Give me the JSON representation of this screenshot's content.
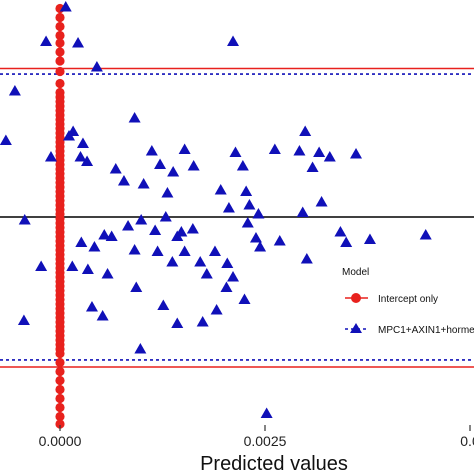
{
  "chart_data": {
    "type": "scatter",
    "xlabel": "Predicted values",
    "x_ticks": [
      {
        "value": 0,
        "label": "0.0000"
      },
      {
        "value": 0.0025,
        "label": "0.0025"
      },
      {
        "value": 0.005,
        "label": "0.0"
      }
    ],
    "legend": {
      "title": "Model",
      "placement": "right",
      "entries": [
        "Intercept only",
        "MPC1+AXIN1+horme"
      ]
    },
    "colors": {
      "intercept": "#e8211d",
      "full_model": "#1010b8",
      "zero_line": "#000000"
    },
    "reference_lines": [
      {
        "series": "Intercept only",
        "style": "solid",
        "y": 0.99
      },
      {
        "series": "MPC1+AXIN1+horme",
        "style": "dashed",
        "y": 0.953
      },
      {
        "series": "zero",
        "style": "solid",
        "y": 0
      },
      {
        "series": "MPC1+AXIN1+horme",
        "style": "dashed",
        "y": -0.953
      },
      {
        "series": "Intercept only",
        "style": "solid",
        "y": -1.0
      }
    ],
    "series": [
      {
        "name": "Intercept only",
        "marker": "circle",
        "points": [
          [
            0,
            1.39
          ],
          [
            0,
            1.33
          ],
          [
            0,
            1.27
          ],
          [
            0,
            1.21
          ],
          [
            0,
            1.16
          ],
          [
            0,
            1.1
          ],
          [
            0,
            1.04
          ],
          [
            0,
            0.97
          ],
          [
            0,
            0.89
          ],
          [
            0,
            0.83
          ],
          [
            0,
            0.8
          ],
          [
            0,
            0.77
          ],
          [
            0,
            0.74
          ],
          [
            0,
            0.71
          ],
          [
            0,
            0.68
          ],
          [
            0,
            0.65
          ],
          [
            0,
            0.62
          ],
          [
            0,
            0.59
          ],
          [
            0,
            0.56
          ],
          [
            0,
            0.53
          ],
          [
            0,
            0.5
          ],
          [
            0,
            0.47
          ],
          [
            0,
            0.44
          ],
          [
            0,
            0.41
          ],
          [
            0,
            0.38
          ],
          [
            0,
            0.35
          ],
          [
            0,
            0.32
          ],
          [
            0,
            0.29
          ],
          [
            0,
            0.26
          ],
          [
            0,
            0.23
          ],
          [
            0,
            0.2
          ],
          [
            0,
            0.17
          ],
          [
            0,
            0.14
          ],
          [
            0,
            0.11
          ],
          [
            0,
            0.08
          ],
          [
            0,
            0.05
          ],
          [
            0,
            0.02
          ],
          [
            0,
            -0.01
          ],
          [
            0,
            -0.04
          ],
          [
            0,
            -0.07
          ],
          [
            0,
            -0.1
          ],
          [
            0,
            -0.13
          ],
          [
            0,
            -0.16
          ],
          [
            0,
            -0.19
          ],
          [
            0,
            -0.22
          ],
          [
            0,
            -0.25
          ],
          [
            0,
            -0.28
          ],
          [
            0,
            -0.31
          ],
          [
            0,
            -0.34
          ],
          [
            0,
            -0.37
          ],
          [
            0,
            -0.4
          ],
          [
            0,
            -0.43
          ],
          [
            0,
            -0.46
          ],
          [
            0,
            -0.49
          ],
          [
            0,
            -0.52
          ],
          [
            0,
            -0.55
          ],
          [
            0,
            -0.58
          ],
          [
            0,
            -0.61
          ],
          [
            0,
            -0.64
          ],
          [
            0,
            -0.67
          ],
          [
            0,
            -0.7
          ],
          [
            0,
            -0.73
          ],
          [
            0,
            -0.76
          ],
          [
            0,
            -0.79
          ],
          [
            0,
            -0.82
          ],
          [
            0,
            -0.85
          ],
          [
            0,
            -0.88
          ],
          [
            0,
            -0.91
          ],
          [
            0,
            -0.97
          ],
          [
            0,
            -1.03
          ],
          [
            0,
            -1.09
          ],
          [
            0,
            -1.15
          ],
          [
            0,
            -1.21
          ],
          [
            0,
            -1.27
          ],
          [
            0,
            -1.33
          ],
          [
            0,
            -1.38
          ]
        ]
      },
      {
        "name": "MPC1+AXIN1+horme",
        "marker": "triangle",
        "points": [
          [
            7e-05,
            1.4
          ],
          [
            -0.00017,
            1.17
          ],
          [
            0.00022,
            1.16
          ],
          [
            0.00211,
            1.17
          ],
          [
            0.00045,
            1.0
          ],
          [
            -0.00055,
            0.84
          ],
          [
            0.00091,
            0.66
          ],
          [
            0.00011,
            0.54
          ],
          [
            0.00016,
            0.57
          ],
          [
            0.00028,
            0.49
          ],
          [
            0.00025,
            0.4
          ],
          [
            0.00112,
            0.44
          ],
          [
            0.00152,
            0.45
          ],
          [
            0.00214,
            0.43
          ],
          [
            0.00223,
            0.34
          ],
          [
            0.00262,
            0.45
          ],
          [
            0.00292,
            0.44
          ],
          [
            0.00299,
            0.57
          ],
          [
            0.00308,
            0.33
          ],
          [
            0.00316,
            0.43
          ],
          [
            0.00361,
            0.42
          ],
          [
            0.00329,
            0.4
          ],
          [
            -0.00011,
            0.4
          ],
          [
            0.00033,
            0.37
          ],
          [
            0.00068,
            0.32
          ],
          [
            0.00078,
            0.24
          ],
          [
            0.00102,
            0.22
          ],
          [
            0.00122,
            0.35
          ],
          [
            0.00131,
            0.16
          ],
          [
            0.00138,
            0.3
          ],
          [
            0.00163,
            0.34
          ],
          [
            0.00196,
            0.18
          ],
          [
            0.00206,
            0.06
          ],
          [
            0.00227,
            0.17
          ],
          [
            0.00231,
            0.08
          ],
          [
            0.00242,
            0.02
          ],
          [
            0.00229,
            -0.04
          ],
          [
            0.00296,
            0.03
          ],
          [
            0.00319,
            0.1
          ],
          [
            0.00342,
            -0.1
          ],
          [
            -0.00043,
            -0.02
          ],
          [
            0.00026,
            -0.17
          ],
          [
            0.00054,
            -0.12
          ],
          [
            0.00042,
            -0.2
          ],
          [
            0.00063,
            -0.13
          ],
          [
            0.00083,
            -0.06
          ],
          [
            0.00091,
            -0.22
          ],
          [
            0.00099,
            -0.02
          ],
          [
            0.00116,
            -0.09
          ],
          [
            0.00119,
            -0.23
          ],
          [
            0.00129,
            0.0
          ],
          [
            0.00137,
            -0.3
          ],
          [
            0.00143,
            -0.13
          ],
          [
            0.00148,
            -0.1
          ],
          [
            0.00152,
            -0.23
          ],
          [
            0.00162,
            -0.08
          ],
          [
            0.00171,
            -0.3
          ],
          [
            0.00179,
            -0.38
          ],
          [
            0.00189,
            -0.23
          ],
          [
            0.00204,
            -0.31
          ],
          [
            0.00211,
            -0.4
          ],
          [
            0.00239,
            -0.14
          ],
          [
            0.00244,
            -0.2
          ],
          [
            0.00268,
            -0.16
          ],
          [
            0.00301,
            -0.28
          ],
          [
            0.00349,
            -0.17
          ],
          [
            0.00378,
            -0.15
          ],
          [
            0.00446,
            -0.12
          ],
          [
            -0.00023,
            -0.33
          ],
          [
            0.00015,
            -0.33
          ],
          [
            0.00034,
            -0.35
          ],
          [
            0.00058,
            -0.38
          ],
          [
            0.00093,
            -0.47
          ],
          [
            0.00126,
            -0.59
          ],
          [
            0.00143,
            -0.71
          ],
          [
            0.00174,
            -0.7
          ],
          [
            0.00203,
            -0.47
          ],
          [
            0.00225,
            -0.55
          ],
          [
            0.00191,
            -0.62
          ],
          [
            -0.00044,
            -0.69
          ],
          [
            0.00039,
            -0.6
          ],
          [
            0.00052,
            -0.66
          ],
          [
            0.00098,
            -0.88
          ],
          [
            0.00252,
            -1.31
          ],
          [
            -0.00066,
            0.51
          ]
        ]
      }
    ]
  }
}
